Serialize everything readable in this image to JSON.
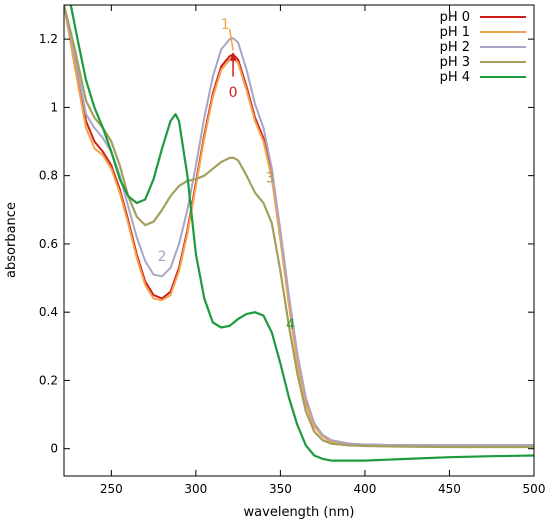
{
  "chart_data": {
    "type": "line",
    "xlabel": "wavelength (nm)",
    "ylabel": "absorbance",
    "xlim": [
      222,
      500
    ],
    "ylim": [
      -0.08,
      1.3
    ],
    "xticks": [
      "250",
      "300",
      "350",
      "400",
      "450",
      "500"
    ],
    "yticks": [
      "0",
      "0.2",
      "0.4",
      "0.6",
      "0.8",
      "1",
      "1.2"
    ],
    "xtick_values": [
      250,
      300,
      350,
      400,
      450,
      500
    ],
    "ytick_values": [
      0,
      0.2,
      0.4,
      0.6,
      0.8,
      1.0,
      1.2
    ],
    "grid": false,
    "legend_position": "top-right",
    "series": [
      {
        "name": "pH 0",
        "color": "#cc1f1a",
        "x": [
          222,
          228,
          235,
          240,
          245,
          250,
          255,
          260,
          265,
          270,
          275,
          280,
          285,
          290,
          295,
          300,
          305,
          310,
          315,
          320,
          322,
          325,
          330,
          335,
          340,
          345,
          350,
          355,
          360,
          365,
          370,
          375,
          380,
          390,
          400,
          425,
          450,
          475,
          500
        ],
        "y": [
          1.3,
          1.15,
          0.96,
          0.9,
          0.87,
          0.83,
          0.76,
          0.67,
          0.57,
          0.49,
          0.45,
          0.44,
          0.46,
          0.53,
          0.64,
          0.78,
          0.92,
          1.04,
          1.12,
          1.15,
          1.155,
          1.14,
          1.06,
          0.97,
          0.91,
          0.8,
          0.62,
          0.43,
          0.26,
          0.14,
          0.07,
          0.04,
          0.025,
          0.015,
          0.012,
          0.01,
          0.01,
          0.01,
          0.01
        ]
      },
      {
        "name": "pH 1",
        "color": "#f4a24c",
        "x": [
          222,
          228,
          235,
          240,
          245,
          250,
          255,
          260,
          265,
          270,
          275,
          280,
          285,
          290,
          295,
          300,
          305,
          310,
          315,
          320,
          322,
          325,
          330,
          335,
          340,
          345,
          350,
          355,
          360,
          365,
          370,
          375,
          380,
          390,
          400,
          425,
          450,
          475,
          500
        ],
        "y": [
          1.3,
          1.13,
          0.94,
          0.88,
          0.86,
          0.82,
          0.75,
          0.66,
          0.56,
          0.48,
          0.44,
          0.435,
          0.45,
          0.52,
          0.63,
          0.77,
          0.91,
          1.03,
          1.11,
          1.14,
          1.145,
          1.13,
          1.05,
          0.96,
          0.9,
          0.79,
          0.61,
          0.42,
          0.25,
          0.13,
          0.065,
          0.035,
          0.02,
          0.012,
          0.01,
          0.008,
          0.007,
          0.007,
          0.007
        ]
      },
      {
        "name": "pH 2",
        "color": "#a8a6c4",
        "x": [
          222,
          228,
          235,
          240,
          245,
          250,
          255,
          260,
          265,
          270,
          275,
          280,
          285,
          290,
          295,
          300,
          305,
          310,
          315,
          320,
          322,
          325,
          330,
          335,
          340,
          345,
          350,
          355,
          360,
          365,
          370,
          375,
          380,
          390,
          400,
          425,
          450,
          475,
          500
        ],
        "y": [
          1.3,
          1.16,
          0.98,
          0.94,
          0.91,
          0.87,
          0.8,
          0.71,
          0.62,
          0.55,
          0.51,
          0.505,
          0.53,
          0.6,
          0.7,
          0.83,
          0.97,
          1.09,
          1.17,
          1.2,
          1.203,
          1.19,
          1.11,
          1.01,
          0.94,
          0.82,
          0.64,
          0.45,
          0.28,
          0.15,
          0.075,
          0.04,
          0.025,
          0.015,
          0.012,
          0.01,
          0.01,
          0.01,
          0.01
        ]
      },
      {
        "name": "pH 3",
        "color": "#a3a05e",
        "x": [
          222,
          228,
          235,
          240,
          245,
          250,
          255,
          260,
          265,
          270,
          275,
          280,
          285,
          290,
          295,
          300,
          305,
          310,
          315,
          320,
          322,
          325,
          330,
          335,
          340,
          345,
          350,
          355,
          360,
          365,
          370,
          375,
          380,
          390,
          400,
          425,
          450,
          475,
          500
        ],
        "y": [
          1.3,
          1.18,
          1.02,
          0.97,
          0.94,
          0.9,
          0.83,
          0.74,
          0.68,
          0.655,
          0.665,
          0.7,
          0.74,
          0.77,
          0.785,
          0.79,
          0.8,
          0.82,
          0.84,
          0.852,
          0.853,
          0.845,
          0.8,
          0.75,
          0.72,
          0.66,
          0.52,
          0.36,
          0.22,
          0.11,
          0.05,
          0.025,
          0.015,
          0.01,
          0.008,
          0.006,
          0.005,
          0.005,
          0.005
        ]
      },
      {
        "name": "pH 4",
        "color": "#1e9a3e",
        "x": [
          222,
          226,
          230,
          235,
          240,
          245,
          250,
          255,
          260,
          265,
          270,
          275,
          280,
          285,
          288,
          290,
          295,
          300,
          305,
          310,
          315,
          320,
          325,
          330,
          335,
          340,
          345,
          350,
          355,
          360,
          365,
          370,
          375,
          380,
          390,
          400,
          425,
          450,
          475,
          500
        ],
        "y": [
          1.35,
          1.3,
          1.2,
          1.08,
          1.0,
          0.94,
          0.87,
          0.79,
          0.74,
          0.72,
          0.73,
          0.79,
          0.88,
          0.96,
          0.98,
          0.96,
          0.8,
          0.57,
          0.44,
          0.37,
          0.355,
          0.36,
          0.38,
          0.395,
          0.4,
          0.39,
          0.34,
          0.25,
          0.15,
          0.07,
          0.01,
          -0.02,
          -0.03,
          -0.035,
          -0.035,
          -0.035,
          -0.03,
          -0.025,
          -0.022,
          -0.02
        ]
      }
    ],
    "annotations": [
      {
        "text": "1",
        "x": 320,
        "y": 1.23,
        "color": "#f4a24c"
      },
      {
        "text": "0",
        "x": 322,
        "y": 1.03,
        "color": "#cc1f1a"
      },
      {
        "text": "2",
        "x": 280,
        "y": 0.55,
        "color": "#a8a6c4"
      },
      {
        "text": "3",
        "x": 344,
        "y": 0.78,
        "color": "#a3a05e"
      },
      {
        "text": "4",
        "x": 356,
        "y": 0.35,
        "color": "#1e9a3e"
      }
    ],
    "annotation_arrows": [
      {
        "color": "#f4a24c",
        "x1": 320,
        "y1": 1.23,
        "x2": 322,
        "y2": 1.167
      },
      {
        "color": "#cc1f1a",
        "x1": 322,
        "y1": 1.09,
        "x2": 322,
        "y2": 1.16
      }
    ]
  }
}
